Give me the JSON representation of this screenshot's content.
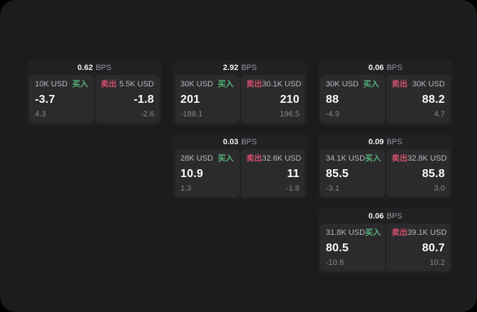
{
  "colors": {
    "surface": "#1c1c1e",
    "card": "#212124",
    "panel": "#2b2b2e",
    "buy": "#57b377",
    "sell": "#d4506b"
  },
  "cards": [
    {
      "col": 1,
      "row": 1,
      "bps_value": "0.62",
      "bps_label": "BPS",
      "buy": {
        "amount": "10K USD",
        "side_label": "买入",
        "price": "-3.7",
        "delta": "4.3"
      },
      "sell": {
        "amount": "5.5K USD",
        "side_label": "卖出",
        "price": "-1.8",
        "delta": "-2.6"
      }
    },
    {
      "col": 2,
      "row": 1,
      "bps_value": "2.92",
      "bps_label": "BPS",
      "buy": {
        "amount": "30K USD",
        "side_label": "买入",
        "price": "201",
        "delta": "-188.1"
      },
      "sell": {
        "amount": "30.1K USD",
        "side_label": "卖出",
        "price": "210",
        "delta": "196.5"
      }
    },
    {
      "col": 3,
      "row": 1,
      "bps_value": "0.06",
      "bps_label": "BPS",
      "buy": {
        "amount": "30K USD",
        "side_label": "买入",
        "price": "88",
        "delta": "-4.9"
      },
      "sell": {
        "amount": "30K USD",
        "side_label": "卖出",
        "price": "88.2",
        "delta": "4.7"
      }
    },
    {
      "col": 2,
      "row": 2,
      "bps_value": "0.03",
      "bps_label": "BPS",
      "buy": {
        "amount": "28K USD",
        "side_label": "买入",
        "price": "10.9",
        "delta": "1.3"
      },
      "sell": {
        "amount": "32.6K USD",
        "side_label": "卖出",
        "price": "11",
        "delta": "-1.8"
      }
    },
    {
      "col": 3,
      "row": 2,
      "bps_value": "0.09",
      "bps_label": "BPS",
      "buy": {
        "amount": "34.1K USD",
        "side_label": "买入",
        "price": "85.5",
        "delta": "-3.1"
      },
      "sell": {
        "amount": "32.8K USD",
        "side_label": "卖出",
        "price": "85.8",
        "delta": "3.0"
      }
    },
    {
      "col": 3,
      "row": 3,
      "bps_value": "0.06",
      "bps_label": "BPS",
      "buy": {
        "amount": "31.8K USD",
        "side_label": "买入",
        "price": "80.5",
        "delta": "-10.8"
      },
      "sell": {
        "amount": "39.1K USD",
        "side_label": "卖出",
        "price": "80.7",
        "delta": "10.2"
      }
    }
  ]
}
